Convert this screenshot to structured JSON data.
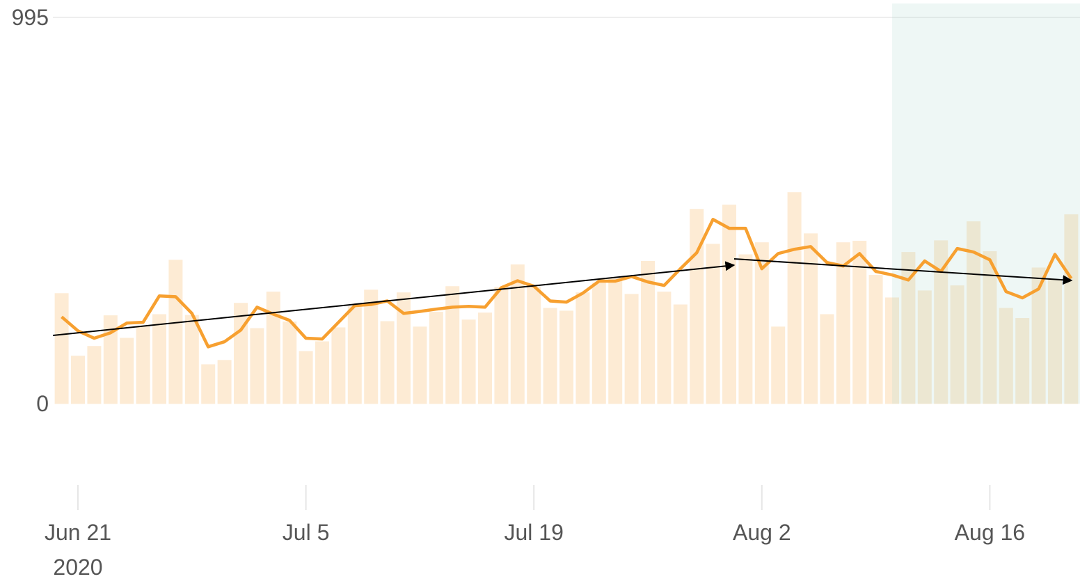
{
  "chart_data": {
    "type": "bar_line",
    "x": [
      "2020-06-20",
      "2020-06-21",
      "2020-06-22",
      "2020-06-23",
      "2020-06-24",
      "2020-06-25",
      "2020-06-26",
      "2020-06-27",
      "2020-06-28",
      "2020-06-29",
      "2020-06-30",
      "2020-07-01",
      "2020-07-02",
      "2020-07-03",
      "2020-07-04",
      "2020-07-05",
      "2020-07-06",
      "2020-07-07",
      "2020-07-08",
      "2020-07-09",
      "2020-07-10",
      "2020-07-11",
      "2020-07-12",
      "2020-07-13",
      "2020-07-14",
      "2020-07-15",
      "2020-07-16",
      "2020-07-17",
      "2020-07-18",
      "2020-07-19",
      "2020-07-20",
      "2020-07-21",
      "2020-07-22",
      "2020-07-23",
      "2020-07-24",
      "2020-07-25",
      "2020-07-26",
      "2020-07-27",
      "2020-07-28",
      "2020-07-29",
      "2020-07-30",
      "2020-07-31",
      "2020-08-01",
      "2020-08-02",
      "2020-08-03",
      "2020-08-04",
      "2020-08-05",
      "2020-08-06",
      "2020-08-07",
      "2020-08-08",
      "2020-08-09",
      "2020-08-10",
      "2020-08-11",
      "2020-08-12",
      "2020-08-13",
      "2020-08-14",
      "2020-08-15",
      "2020-08-16",
      "2020-08-17",
      "2020-08-18",
      "2020-08-19",
      "2020-08-20",
      "2020-08-21"
    ],
    "series": [
      {
        "kind": "bar",
        "color": "#fdebd4",
        "values": [
          285,
          124,
          149,
          228,
          170,
          200,
          231,
          371,
          229,
          102,
          113,
          260,
          195,
          289,
          212,
          136,
          161,
          197,
          251,
          294,
          213,
          287,
          199,
          237,
          303,
          217,
          235,
          301,
          359,
          301,
          247,
          240,
          287,
          312,
          323,
          283,
          368,
          289,
          256,
          502,
          412,
          513,
          385,
          416,
          199,
          545,
          439,
          231,
          416,
          420,
          332,
          274,
          391,
          292,
          421,
          305,
          470,
          393,
          247,
          221,
          351,
          321,
          488
        ]
      },
      {
        "kind": "line",
        "color": "#f7a030",
        "values": [
          224,
          188,
          169,
          183,
          208,
          210,
          278,
          276,
          233,
          147,
          160,
          190,
          249,
          231,
          215,
          169,
          167,
          210,
          253,
          256,
          265,
          233,
          238,
          244,
          249,
          251,
          249,
          299,
          317,
          303,
          265,
          262,
          285,
          316,
          316,
          328,
          314,
          305,
          348,
          389,
          475,
          452,
          452,
          348,
          387,
          398,
          405,
          364,
          355,
          387,
          341,
          332,
          319,
          368,
          341,
          400,
          391,
          371,
          289,
          273,
          296,
          385,
          323
        ]
      }
    ],
    "ylim": [
      -200,
      1030
    ],
    "yticks": [
      0,
      995
    ],
    "xticks": [
      {
        "value": "2020-06-21",
        "label": "Jun 21\n2020"
      },
      {
        "value": "2020-07-05",
        "label": "Jul 5"
      },
      {
        "value": "2020-07-19",
        "label": "Jul 19"
      },
      {
        "value": "2020-08-02",
        "label": "Aug 2"
      },
      {
        "value": "2020-08-16",
        "label": "Aug 16"
      }
    ],
    "grid": true
  }
}
